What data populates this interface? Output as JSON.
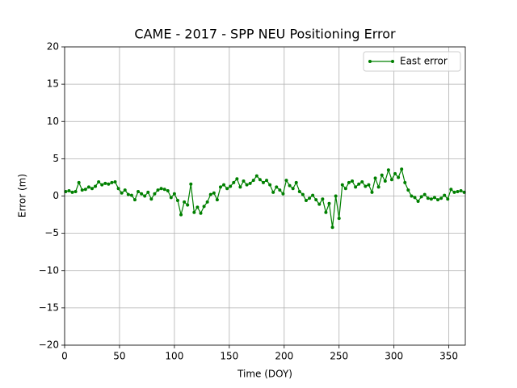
{
  "chart_data": {
    "type": "line",
    "title": "CAME - 2017 - SPP NEU Positioning Error",
    "x_label": "Time (DOY)",
    "y_label": "Error (m)",
    "xlim": [
      0,
      365
    ],
    "xticks": [
      0,
      50,
      100,
      150,
      200,
      250,
      300,
      350
    ],
    "ylim": [
      -20,
      20
    ],
    "yticks": [
      {
        "value": -20,
        "label": "−20"
      },
      {
        "value": -15,
        "label": "−15"
      },
      {
        "value": -10,
        "label": "−10"
      },
      {
        "value": -5,
        "label": "−5"
      },
      0,
      5,
      10,
      15,
      20
    ],
    "grid": true,
    "legend": "upper right",
    "x": [
      1,
      4,
      7,
      10,
      13,
      16,
      19,
      22,
      25,
      28,
      31,
      34,
      37,
      40,
      43,
      46,
      49,
      52,
      55,
      58,
      61,
      64,
      67,
      70,
      73,
      76,
      79,
      82,
      85,
      88,
      91,
      94,
      97,
      100,
      103,
      106,
      109,
      112,
      115,
      118,
      121,
      124,
      127,
      130,
      133,
      136,
      139,
      142,
      145,
      148,
      151,
      154,
      157,
      160,
      163,
      166,
      169,
      172,
      175,
      178,
      181,
      184,
      187,
      190,
      193,
      196,
      199,
      202,
      205,
      208,
      211,
      214,
      217,
      220,
      223,
      226,
      229,
      232,
      235,
      238,
      241,
      244,
      247,
      250,
      253,
      256,
      259,
      262,
      265,
      268,
      271,
      274,
      277,
      280,
      283,
      286,
      289,
      292,
      295,
      298,
      301,
      304,
      307,
      310,
      313,
      316,
      319,
      322,
      325,
      328,
      331,
      334,
      337,
      340,
      343,
      346,
      349,
      352,
      355,
      358,
      361,
      364
    ],
    "series": [
      {
        "name": "East error",
        "color": "#008000",
        "values": [
          0.6,
          0.7,
          0.5,
          0.6,
          1.8,
          0.8,
          0.9,
          1.2,
          1.0,
          1.3,
          1.9,
          1.5,
          1.7,
          1.6,
          1.8,
          1.9,
          1.0,
          0.4,
          0.8,
          0.2,
          0.1,
          -0.5,
          0.6,
          0.3,
          0.0,
          0.5,
          -0.4,
          0.3,
          0.8,
          1.0,
          0.9,
          0.7,
          -0.2,
          0.3,
          -0.6,
          -2.5,
          -0.8,
          -1.2,
          1.6,
          -2.2,
          -1.5,
          -2.3,
          -1.4,
          -0.8,
          0.2,
          0.4,
          -0.5,
          1.2,
          1.5,
          1.0,
          1.3,
          1.8,
          2.3,
          1.2,
          2.0,
          1.5,
          1.7,
          2.1,
          2.7,
          2.2,
          1.8,
          2.1,
          1.5,
          0.5,
          1.2,
          0.8,
          0.3,
          2.1,
          1.4,
          1.0,
          1.8,
          0.6,
          0.2,
          -0.6,
          -0.3,
          0.1,
          -0.5,
          -1.1,
          -0.4,
          -2.2,
          -1.0,
          -4.2,
          0.0,
          -3.0,
          1.5,
          1.0,
          1.8,
          2.0,
          1.2,
          1.6,
          1.9,
          1.3,
          1.5,
          0.5,
          2.4,
          1.2,
          2.8,
          2.0,
          3.5,
          2.2,
          3.0,
          2.5,
          3.6,
          1.8,
          0.8,
          0.0,
          -0.2,
          -0.7,
          -0.1,
          0.2,
          -0.3,
          -0.4,
          -0.2,
          -0.5,
          -0.3,
          0.1,
          -0.4,
          0.9,
          0.5,
          0.6,
          0.7,
          0.5
        ]
      }
    ]
  }
}
